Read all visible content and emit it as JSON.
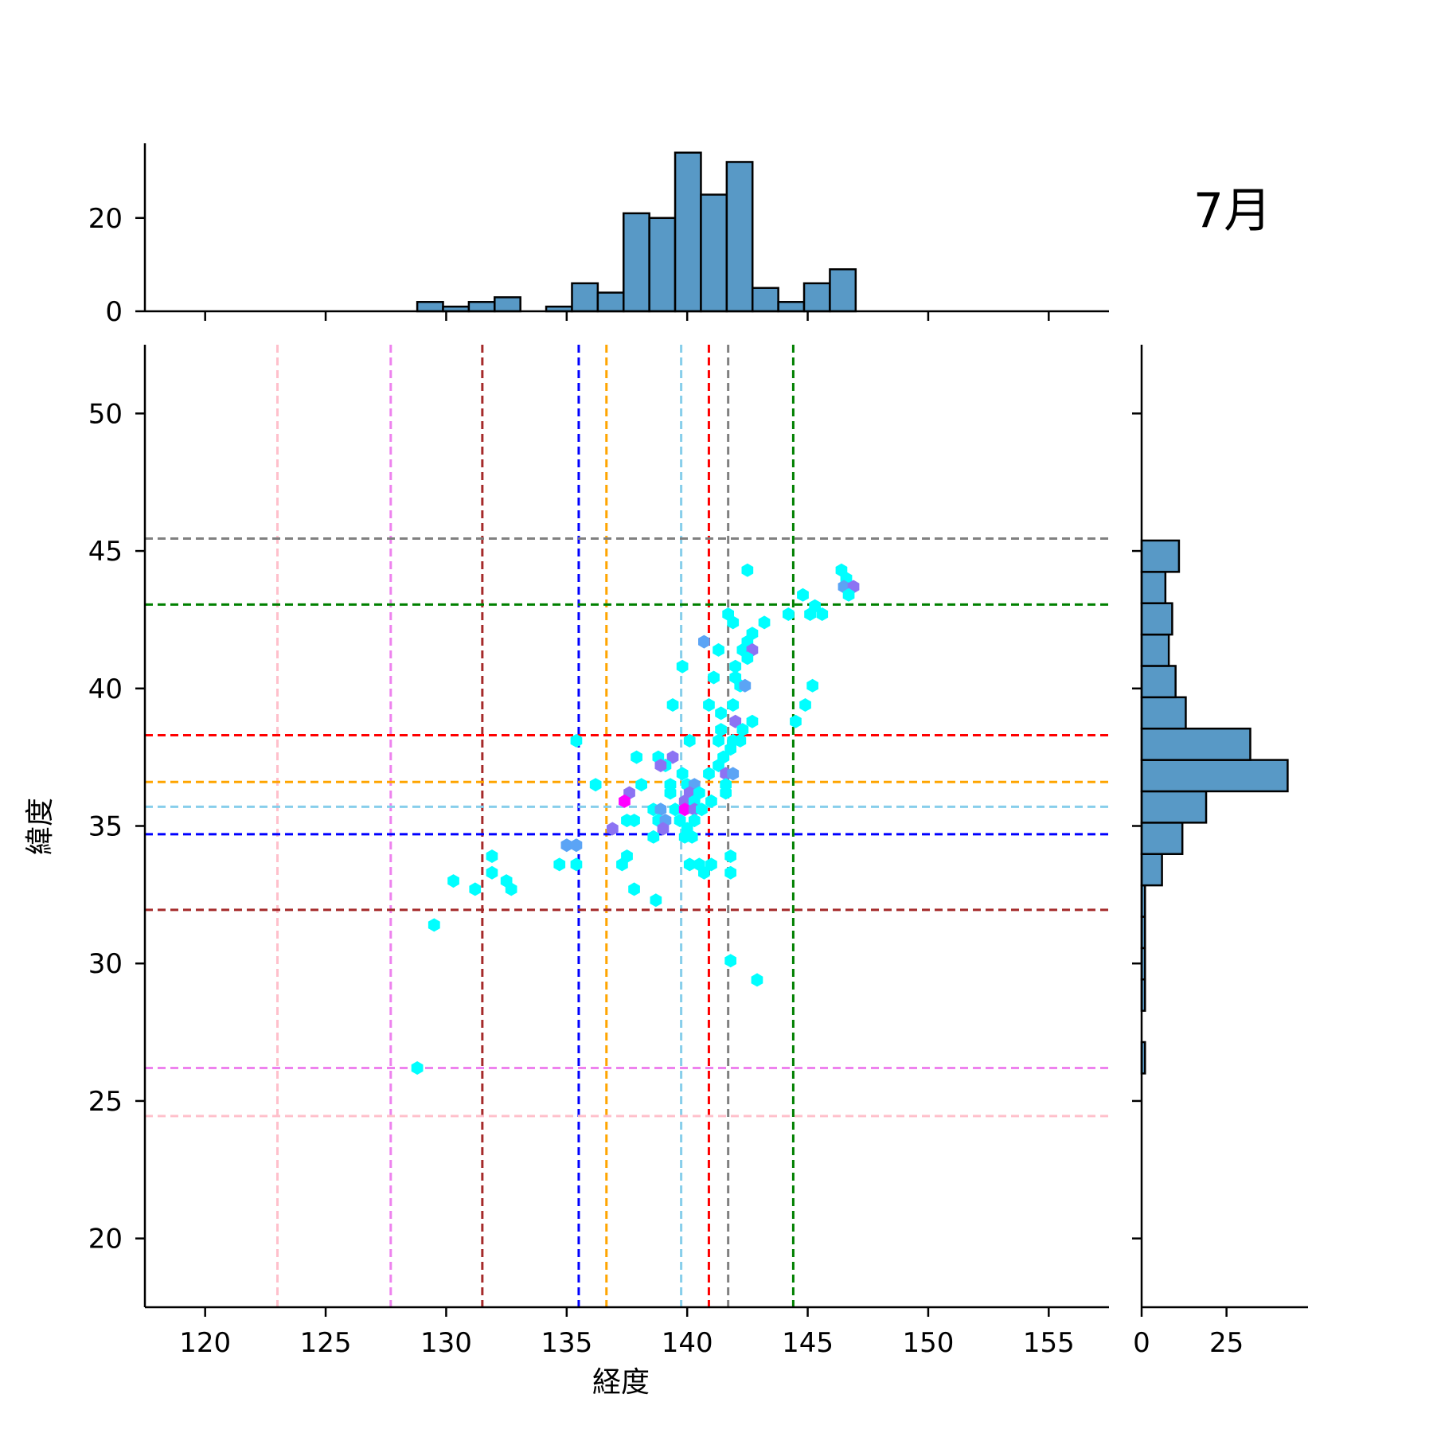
{
  "chart_data": {
    "type": "hexbin-jointplot",
    "title": "7月",
    "xlabel": "経度",
    "ylabel": "緯度",
    "xlim": [
      117.5,
      157.5
    ],
    "ylim": [
      17.5,
      52.5
    ],
    "x_ticks": [
      120,
      125,
      130,
      135,
      140,
      145,
      150,
      155
    ],
    "y_ticks": [
      20,
      25,
      30,
      35,
      40,
      45,
      50
    ],
    "grid": false,
    "colormap": "cool",
    "hex_colors": {
      "1": "#00ffff",
      "2": "#5ba4f5",
      "3": "#8c73f3",
      "4": "#ff00ff"
    },
    "marginal_color": "#5899c6",
    "top_hist": {
      "y_ticks": [
        0,
        20
      ],
      "ylim": [
        0,
        36
      ],
      "bin_width": 1.07,
      "bins": [
        {
          "x0": 128.8,
          "count": 2
        },
        {
          "x0": 129.87,
          "count": 1
        },
        {
          "x0": 130.94,
          "count": 2
        },
        {
          "x0": 132.01,
          "count": 3
        },
        {
          "x0": 133.08,
          "count": 0
        },
        {
          "x0": 134.15,
          "count": 1
        },
        {
          "x0": 135.22,
          "count": 6
        },
        {
          "x0": 136.29,
          "count": 4
        },
        {
          "x0": 137.36,
          "count": 21
        },
        {
          "x0": 138.43,
          "count": 20
        },
        {
          "x0": 139.5,
          "count": 34
        },
        {
          "x0": 140.57,
          "count": 25
        },
        {
          "x0": 141.64,
          "count": 32
        },
        {
          "x0": 142.71,
          "count": 5
        },
        {
          "x0": 143.78,
          "count": 2
        },
        {
          "x0": 144.85,
          "count": 6
        },
        {
          "x0": 145.92,
          "count": 9
        }
      ]
    },
    "right_hist": {
      "x_ticks": [
        0,
        25
      ],
      "xlim": [
        0,
        49
      ],
      "bin_width": 1.14,
      "bins": [
        {
          "y0": 26.0,
          "count": 1
        },
        {
          "y0": 27.14,
          "count": 0
        },
        {
          "y0": 28.28,
          "count": 1
        },
        {
          "y0": 29.42,
          "count": 1
        },
        {
          "y0": 30.56,
          "count": 1
        },
        {
          "y0": 31.7,
          "count": 1
        },
        {
          "y0": 32.84,
          "count": 6
        },
        {
          "y0": 33.98,
          "count": 12
        },
        {
          "y0": 35.12,
          "count": 19
        },
        {
          "y0": 36.26,
          "count": 43
        },
        {
          "y0": 37.4,
          "count": 32
        },
        {
          "y0": 38.54,
          "count": 13
        },
        {
          "y0": 39.68,
          "count": 10
        },
        {
          "y0": 40.82,
          "count": 8
        },
        {
          "y0": 41.96,
          "count": 9
        },
        {
          "y0": 43.1,
          "count": 7
        },
        {
          "y0": 44.24,
          "count": 11
        }
      ]
    },
    "vlines": [
      {
        "x": 123.0,
        "color": "#ffc0cb"
      },
      {
        "x": 127.7,
        "color": "#ee82ee"
      },
      {
        "x": 131.5,
        "color": "#a52a2a"
      },
      {
        "x": 135.5,
        "color": "#0000ff"
      },
      {
        "x": 136.65,
        "color": "#ffa500"
      },
      {
        "x": 139.75,
        "color": "#87ceeb"
      },
      {
        "x": 140.9,
        "color": "#ff0000"
      },
      {
        "x": 141.7,
        "color": "#808080"
      },
      {
        "x": 144.4,
        "color": "#008000"
      }
    ],
    "hlines": [
      {
        "y": 45.45,
        "color": "#808080"
      },
      {
        "y": 43.05,
        "color": "#008000"
      },
      {
        "y": 38.3,
        "color": "#ff0000"
      },
      {
        "y": 36.6,
        "color": "#ffa500"
      },
      {
        "y": 35.7,
        "color": "#87ceeb"
      },
      {
        "y": 34.7,
        "color": "#0000ff"
      },
      {
        "y": 31.95,
        "color": "#a52a2a"
      },
      {
        "y": 26.2,
        "color": "#ee82ee"
      },
      {
        "y": 24.45,
        "color": "#ffc0cb"
      }
    ],
    "hexes": [
      {
        "x": 142.5,
        "y": 44.3,
        "c": 1
      },
      {
        "x": 146.4,
        "y": 44.3,
        "c": 1
      },
      {
        "x": 146.6,
        "y": 44.0,
        "c": 1
      },
      {
        "x": 146.5,
        "y": 43.7,
        "c": 2
      },
      {
        "x": 146.9,
        "y": 43.7,
        "c": 3
      },
      {
        "x": 146.7,
        "y": 43.4,
        "c": 1
      },
      {
        "x": 144.8,
        "y": 43.4,
        "c": 1
      },
      {
        "x": 145.3,
        "y": 43.0,
        "c": 1
      },
      {
        "x": 145.1,
        "y": 42.7,
        "c": 1
      },
      {
        "x": 145.6,
        "y": 42.7,
        "c": 1
      },
      {
        "x": 144.2,
        "y": 42.7,
        "c": 1
      },
      {
        "x": 141.7,
        "y": 42.7,
        "c": 1
      },
      {
        "x": 141.9,
        "y": 42.4,
        "c": 1
      },
      {
        "x": 143.2,
        "y": 42.4,
        "c": 1
      },
      {
        "x": 142.7,
        "y": 42.0,
        "c": 1
      },
      {
        "x": 140.7,
        "y": 41.7,
        "c": 2
      },
      {
        "x": 142.5,
        "y": 41.7,
        "c": 1
      },
      {
        "x": 141.3,
        "y": 41.4,
        "c": 1
      },
      {
        "x": 142.3,
        "y": 41.4,
        "c": 1
      },
      {
        "x": 142.7,
        "y": 41.4,
        "c": 3
      },
      {
        "x": 142.5,
        "y": 41.1,
        "c": 1
      },
      {
        "x": 139.8,
        "y": 40.8,
        "c": 1
      },
      {
        "x": 142.0,
        "y": 40.8,
        "c": 1
      },
      {
        "x": 142.0,
        "y": 40.4,
        "c": 1
      },
      {
        "x": 141.1,
        "y": 40.4,
        "c": 1
      },
      {
        "x": 142.2,
        "y": 40.1,
        "c": 1
      },
      {
        "x": 142.4,
        "y": 40.1,
        "c": 2
      },
      {
        "x": 145.2,
        "y": 40.1,
        "c": 1
      },
      {
        "x": 139.4,
        "y": 39.4,
        "c": 1
      },
      {
        "x": 140.9,
        "y": 39.4,
        "c": 1
      },
      {
        "x": 141.9,
        "y": 39.4,
        "c": 1
      },
      {
        "x": 141.4,
        "y": 39.1,
        "c": 1
      },
      {
        "x": 144.9,
        "y": 39.4,
        "c": 1
      },
      {
        "x": 142.0,
        "y": 38.8,
        "c": 3
      },
      {
        "x": 142.7,
        "y": 38.8,
        "c": 1
      },
      {
        "x": 144.5,
        "y": 38.8,
        "c": 1
      },
      {
        "x": 141.4,
        "y": 38.5,
        "c": 1
      },
      {
        "x": 142.3,
        "y": 38.5,
        "c": 1
      },
      {
        "x": 135.4,
        "y": 38.1,
        "c": 1
      },
      {
        "x": 140.1,
        "y": 38.1,
        "c": 1
      },
      {
        "x": 141.3,
        "y": 38.1,
        "c": 1
      },
      {
        "x": 141.9,
        "y": 38.1,
        "c": 1
      },
      {
        "x": 142.2,
        "y": 38.1,
        "c": 1
      },
      {
        "x": 141.8,
        "y": 37.8,
        "c": 1
      },
      {
        "x": 137.9,
        "y": 37.5,
        "c": 1
      },
      {
        "x": 138.8,
        "y": 37.5,
        "c": 1
      },
      {
        "x": 139.4,
        "y": 37.5,
        "c": 3
      },
      {
        "x": 141.5,
        "y": 37.5,
        "c": 1
      },
      {
        "x": 139.1,
        "y": 37.2,
        "c": 1
      },
      {
        "x": 138.9,
        "y": 37.2,
        "c": 3
      },
      {
        "x": 141.3,
        "y": 37.2,
        "c": 1
      },
      {
        "x": 139.8,
        "y": 36.9,
        "c": 1
      },
      {
        "x": 140.9,
        "y": 36.9,
        "c": 1
      },
      {
        "x": 141.6,
        "y": 36.9,
        "c": 3
      },
      {
        "x": 141.9,
        "y": 36.9,
        "c": 2
      },
      {
        "x": 136.2,
        "y": 36.5,
        "c": 1
      },
      {
        "x": 138.1,
        "y": 36.5,
        "c": 1
      },
      {
        "x": 139.3,
        "y": 36.5,
        "c": 1
      },
      {
        "x": 140.0,
        "y": 36.5,
        "c": 1
      },
      {
        "x": 140.3,
        "y": 36.5,
        "c": 2
      },
      {
        "x": 141.6,
        "y": 36.5,
        "c": 1
      },
      {
        "x": 137.6,
        "y": 36.2,
        "c": 3
      },
      {
        "x": 139.3,
        "y": 36.2,
        "c": 1
      },
      {
        "x": 140.1,
        "y": 36.2,
        "c": 3
      },
      {
        "x": 140.5,
        "y": 36.2,
        "c": 1
      },
      {
        "x": 141.6,
        "y": 36.2,
        "c": 1
      },
      {
        "x": 137.4,
        "y": 35.9,
        "c": 4
      },
      {
        "x": 139.9,
        "y": 35.9,
        "c": 3
      },
      {
        "x": 140.3,
        "y": 35.9,
        "c": 1
      },
      {
        "x": 141.0,
        "y": 35.9,
        "c": 1
      },
      {
        "x": 138.6,
        "y": 35.6,
        "c": 1
      },
      {
        "x": 138.9,
        "y": 35.6,
        "c": 2
      },
      {
        "x": 139.5,
        "y": 35.6,
        "c": 1
      },
      {
        "x": 139.9,
        "y": 35.6,
        "c": 4
      },
      {
        "x": 140.3,
        "y": 35.6,
        "c": 3
      },
      {
        "x": 140.6,
        "y": 35.6,
        "c": 1
      },
      {
        "x": 137.5,
        "y": 35.2,
        "c": 1
      },
      {
        "x": 137.8,
        "y": 35.2,
        "c": 1
      },
      {
        "x": 138.8,
        "y": 35.2,
        "c": 1
      },
      {
        "x": 139.1,
        "y": 35.2,
        "c": 2
      },
      {
        "x": 139.7,
        "y": 35.2,
        "c": 1
      },
      {
        "x": 140.3,
        "y": 35.2,
        "c": 1
      },
      {
        "x": 136.9,
        "y": 34.9,
        "c": 3
      },
      {
        "x": 139.0,
        "y": 34.9,
        "c": 3
      },
      {
        "x": 140.0,
        "y": 34.9,
        "c": 1
      },
      {
        "x": 138.6,
        "y": 34.6,
        "c": 1
      },
      {
        "x": 139.9,
        "y": 34.6,
        "c": 1
      },
      {
        "x": 140.2,
        "y": 34.6,
        "c": 1
      },
      {
        "x": 135.0,
        "y": 34.3,
        "c": 2
      },
      {
        "x": 135.4,
        "y": 34.3,
        "c": 2
      },
      {
        "x": 137.5,
        "y": 33.9,
        "c": 1
      },
      {
        "x": 131.9,
        "y": 33.9,
        "c": 1
      },
      {
        "x": 141.8,
        "y": 33.9,
        "c": 1
      },
      {
        "x": 134.7,
        "y": 33.6,
        "c": 1
      },
      {
        "x": 135.4,
        "y": 33.6,
        "c": 1
      },
      {
        "x": 137.3,
        "y": 33.6,
        "c": 1
      },
      {
        "x": 140.1,
        "y": 33.6,
        "c": 1
      },
      {
        "x": 140.5,
        "y": 33.6,
        "c": 1
      },
      {
        "x": 141.0,
        "y": 33.6,
        "c": 1
      },
      {
        "x": 131.9,
        "y": 33.3,
        "c": 1
      },
      {
        "x": 140.7,
        "y": 33.3,
        "c": 1
      },
      {
        "x": 141.8,
        "y": 33.3,
        "c": 1
      },
      {
        "x": 130.3,
        "y": 33.0,
        "c": 1
      },
      {
        "x": 132.5,
        "y": 33.0,
        "c": 1
      },
      {
        "x": 131.2,
        "y": 32.7,
        "c": 1
      },
      {
        "x": 132.7,
        "y": 32.7,
        "c": 1
      },
      {
        "x": 137.8,
        "y": 32.7,
        "c": 1
      },
      {
        "x": 138.7,
        "y": 32.3,
        "c": 1
      },
      {
        "x": 129.5,
        "y": 31.4,
        "c": 1
      },
      {
        "x": 141.8,
        "y": 30.1,
        "c": 1
      },
      {
        "x": 142.9,
        "y": 29.4,
        "c": 1
      },
      {
        "x": 128.8,
        "y": 26.2,
        "c": 1
      }
    ]
  }
}
